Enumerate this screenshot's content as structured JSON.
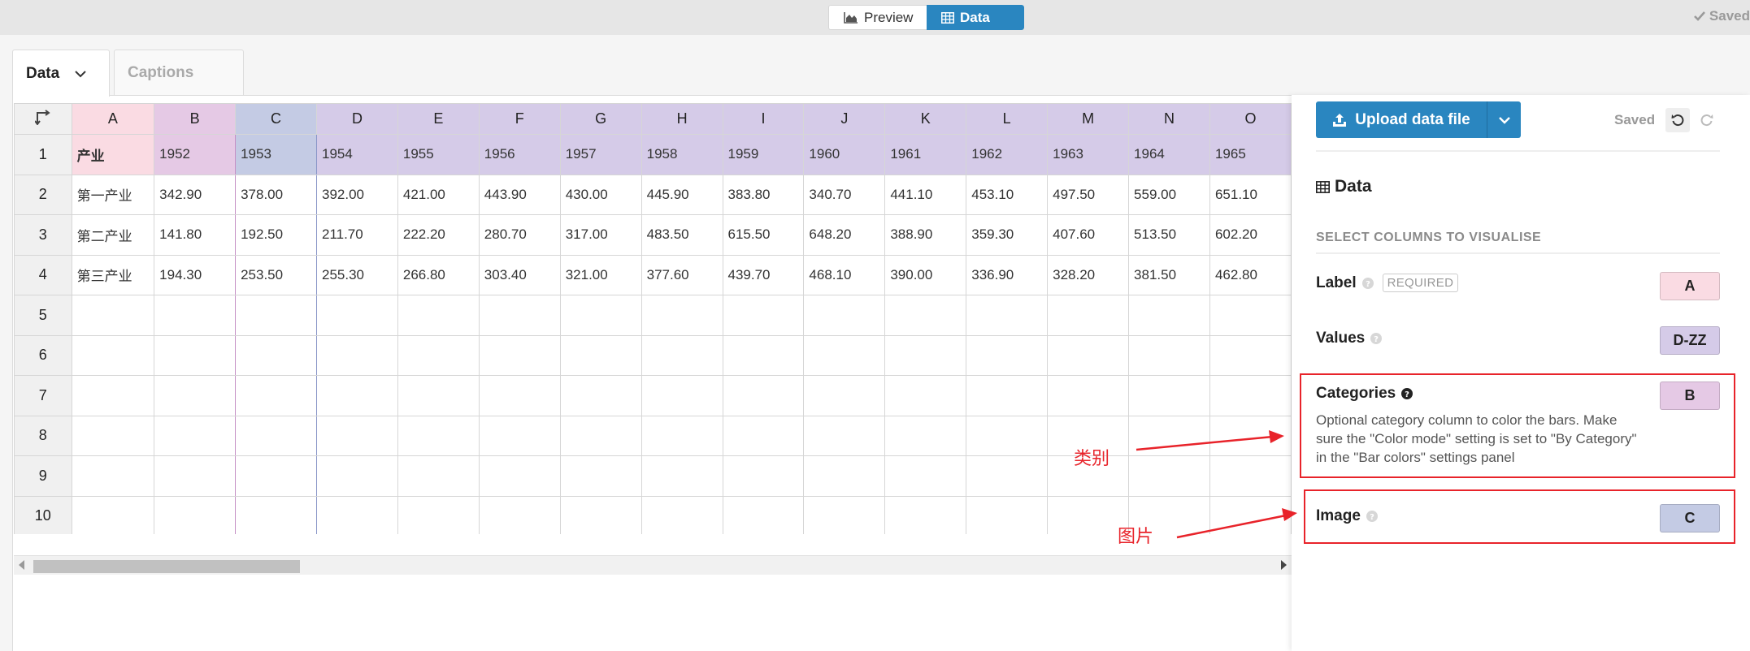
{
  "topbar": {
    "preview_label": "Preview",
    "data_label": "Data",
    "saved_label": "Saved"
  },
  "tabs": {
    "data_label": "Data",
    "captions_label": "Captions"
  },
  "sheet": {
    "columns": [
      "A",
      "B",
      "C",
      "D",
      "E",
      "F",
      "G",
      "H",
      "I",
      "J",
      "K",
      "L",
      "M",
      "N",
      "O"
    ],
    "rows": [
      [
        "产业",
        "1952",
        "1953",
        "1954",
        "1955",
        "1956",
        "1957",
        "1958",
        "1959",
        "1960",
        "1961",
        "1962",
        "1963",
        "1964",
        "1965"
      ],
      [
        "第一产业",
        "342.90",
        "378.00",
        "392.00",
        "421.00",
        "443.90",
        "430.00",
        "445.90",
        "383.80",
        "340.70",
        "441.10",
        "453.10",
        "497.50",
        "559.00",
        "651.10"
      ],
      [
        "第二产业",
        "141.80",
        "192.50",
        "211.70",
        "222.20",
        "280.70",
        "317.00",
        "483.50",
        "615.50",
        "648.20",
        "388.90",
        "359.30",
        "407.60",
        "513.50",
        "602.20"
      ],
      [
        "第三产业",
        "194.30",
        "253.50",
        "255.30",
        "266.80",
        "303.40",
        "321.00",
        "377.60",
        "439.70",
        "468.10",
        "390.00",
        "336.90",
        "328.20",
        "381.50",
        "462.80"
      ],
      [
        "",
        "",
        "",
        "",
        "",
        "",
        "",
        "",
        "",
        "",
        "",
        "",
        "",
        "",
        ""
      ],
      [
        "",
        "",
        "",
        "",
        "",
        "",
        "",
        "",
        "",
        "",
        "",
        "",
        "",
        "",
        ""
      ],
      [
        "",
        "",
        "",
        "",
        "",
        "",
        "",
        "",
        "",
        "",
        "",
        "",
        "",
        "",
        ""
      ],
      [
        "",
        "",
        "",
        "",
        "",
        "",
        "",
        "",
        "",
        "",
        "",
        "",
        "",
        "",
        ""
      ],
      [
        "",
        "",
        "",
        "",
        "",
        "",
        "",
        "",
        "",
        "",
        "",
        "",
        "",
        "",
        ""
      ],
      [
        "",
        "",
        "",
        "",
        "",
        "",
        "",
        "",
        "",
        "",
        "",
        "",
        "",
        "",
        ""
      ]
    ],
    "row_numbers": [
      "1",
      "2",
      "3",
      "4",
      "5",
      "6",
      "7",
      "8",
      "9",
      "10"
    ]
  },
  "sidebar": {
    "upload_label": "Upload data file",
    "saved_label": "Saved",
    "title": "Data",
    "section_label": "SELECT COLUMNS TO VISUALISE",
    "fields": {
      "label": {
        "name": "Label",
        "required": "REQUIRED",
        "column": "A"
      },
      "values": {
        "name": "Values",
        "column": "D-ZZ"
      },
      "categories": {
        "name": "Categories",
        "column": "B",
        "description": "Optional category column to color the bars. Make sure the \"Color mode\" setting is set to \"By Category\" in the \"Bar colors\" settings panel"
      },
      "image": {
        "name": "Image",
        "column": "C"
      }
    }
  },
  "annotations": {
    "categories_note": "类别",
    "image_note": "图片"
  },
  "colors": {
    "accent": "#2a86c0",
    "col_a": "#fadbe3",
    "col_b": "#e5c9e5",
    "col_c": "#c4cbe4",
    "col_values": "#d5cbe8",
    "annotation_red": "#e8232a"
  }
}
